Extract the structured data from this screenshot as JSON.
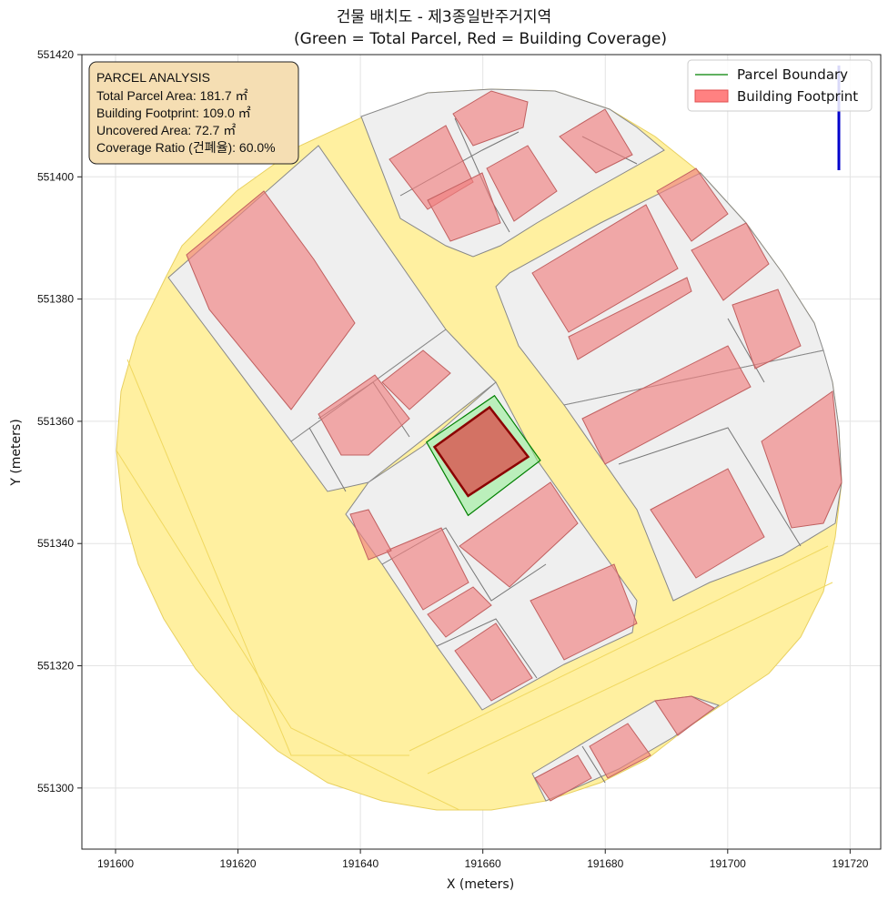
{
  "chart_data": {
    "type": "map",
    "title": "건물 배치도 - 제3종일반주거지역",
    "subtitle": "(Green = Total Parcel, Red = Building Coverage)",
    "xlabel": "X (meters)",
    "ylabel": "Y (meters)",
    "xlim": [
      191594.5,
      191725
    ],
    "ylim": [
      551290,
      551420
    ],
    "xticks": [
      "191600",
      "191620",
      "191640",
      "191660",
      "191680",
      "191700",
      "191720"
    ],
    "yticks": [
      "551300",
      "551320",
      "551340",
      "551360",
      "551380",
      "551400",
      "551420"
    ],
    "grid": true,
    "legend_position": "top-right",
    "legend": [
      {
        "label": "Parcel Boundary",
        "color": "#008000",
        "kind": "line"
      },
      {
        "label": "Building Footprint",
        "color": "#ff6b6b",
        "kind": "patch"
      }
    ],
    "info_box": {
      "heading": "PARCEL ANALYSIS",
      "lines": [
        "Total Parcel Area: 181.7 ㎡",
        "Building Footprint: 109.0 ㎡",
        "Uncovered Area: 72.7 ㎡",
        "Coverage Ratio (건폐율): 60.0%"
      ]
    },
    "parcel_boundary": [
      [
        191650.8,
        551356.6
      ],
      [
        191661.9,
        551364.2
      ],
      [
        191669.4,
        551353.6
      ],
      [
        191657.6,
        551344.6
      ]
    ],
    "building_footprint": [
      [
        191652.1,
        551355.8
      ],
      [
        191661.1,
        551362.3
      ],
      [
        191667.4,
        551354.2
      ],
      [
        191657.6,
        551347.8
      ]
    ],
    "colors": {
      "parcel_edge": "#008000",
      "parcel_fill": "#90ee90",
      "building_edge": "#8b0000",
      "building_fill": "#d9534f",
      "road_fill": "#fff0a0",
      "lot_fill": "#efefef",
      "context_building": "#f08080",
      "north_arrow": "#0000cc",
      "info_box_fill": "#f5deb3"
    }
  }
}
